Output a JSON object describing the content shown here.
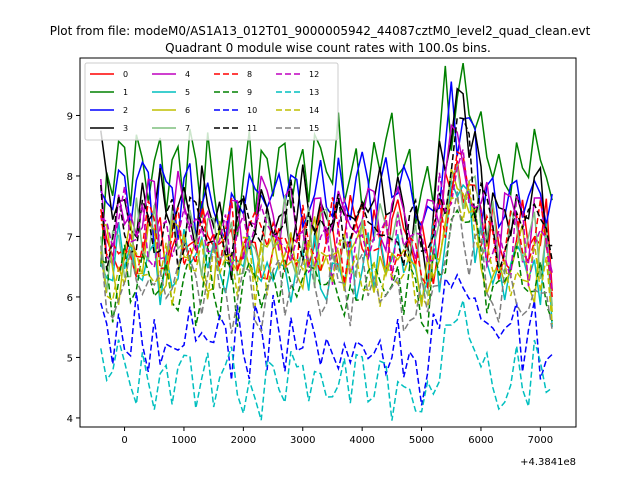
{
  "chart_data": {
    "type": "line",
    "suptitle": "Plot from file: modeM0/AS1A13_012T01_9000005942_44087cztM0_level2_quad_clean.evt",
    "title": "Quadrant 0 module wise count rates with 100.0s bins.",
    "xlabel": "",
    "ylabel": "",
    "x_offset_label": "+4.3841e8",
    "xlim": [
      -750,
      7600
    ],
    "ylim": [
      3.85,
      9.95
    ],
    "xticks": [
      0,
      1000,
      2000,
      3000,
      4000,
      5000,
      6000,
      7000
    ],
    "xtick_labels": [
      "0",
      "1000",
      "2000",
      "3000",
      "4000",
      "5000",
      "6000",
      "7000"
    ],
    "yticks": [
      4,
      5,
      6,
      7,
      8,
      9
    ],
    "ytick_labels": [
      "4",
      "5",
      "6",
      "7",
      "8",
      "9"
    ],
    "x_start": -400,
    "x_step": 100,
    "n_points": 77,
    "legend_position": "top-left",
    "series": [
      {
        "name": "0",
        "color": "#ff0000",
        "dash": "solid",
        "base": 7.0,
        "amp": 0.35,
        "freq": 1.7,
        "phase": 0.3,
        "bump": 1.2,
        "start": 7.45,
        "end": 6.1,
        "dip": 0.0
      },
      {
        "name": "1",
        "color": "#008000",
        "dash": "solid",
        "base": 8.2,
        "amp": 0.55,
        "freq": 2.3,
        "phase": 1.1,
        "bump": 1.3,
        "start": 6.5,
        "end": 7.6,
        "dip": 0.5
      },
      {
        "name": "2",
        "color": "#0000ff",
        "dash": "solid",
        "base": 7.7,
        "amp": 0.5,
        "freq": 1.9,
        "phase": 2.0,
        "bump": 1.4,
        "start": 7.75,
        "end": 7.7,
        "dip": 0.6
      },
      {
        "name": "3",
        "color": "#000000",
        "dash": "solid",
        "base": 7.4,
        "amp": 0.45,
        "freq": 2.1,
        "phase": 0.7,
        "bump": 1.5,
        "start": 8.75,
        "end": 6.85,
        "dip": 0.4
      },
      {
        "name": "4",
        "color": "#bf00bf",
        "dash": "solid",
        "base": 7.25,
        "amp": 0.4,
        "freq": 1.5,
        "phase": 2.7,
        "bump": 1.3,
        "start": 7.95,
        "end": 6.4,
        "dip": 0.2
      },
      {
        "name": "5",
        "color": "#00bfbf",
        "dash": "solid",
        "base": 6.55,
        "amp": 0.35,
        "freq": 2.5,
        "phase": 1.6,
        "bump": 1.1,
        "start": 6.55,
        "end": 5.5,
        "dip": 0.0
      },
      {
        "name": "6",
        "color": "#bfbf00",
        "dash": "solid",
        "base": 6.6,
        "amp": 0.35,
        "freq": 1.8,
        "phase": 0.2,
        "bump": 1.2,
        "start": 7.2,
        "end": 5.75,
        "dip": 0.0
      },
      {
        "name": "7",
        "color": "#7fbf7f",
        "dash": "solid",
        "base": 6.9,
        "amp": 0.45,
        "freq": 2.2,
        "phase": 2.4,
        "bump": 1.2,
        "start": 7.0,
        "end": 5.85,
        "dip": 0.0
      },
      {
        "name": "8",
        "color": "#ff0000",
        "dash": "6,3",
        "base": 6.9,
        "amp": 0.35,
        "freq": 1.6,
        "phase": 1.9,
        "bump": 1.2,
        "start": 7.35,
        "end": 6.0,
        "dip": 0.0
      },
      {
        "name": "9",
        "color": "#008000",
        "dash": "6,3",
        "base": 6.3,
        "amp": 0.35,
        "freq": 2.0,
        "phase": 0.9,
        "bump": 1.0,
        "start": 6.6,
        "end": 5.6,
        "dip": 0.0
      },
      {
        "name": "10",
        "color": "#0000ff",
        "dash": "6,3",
        "base": 5.3,
        "amp": 0.35,
        "freq": 2.4,
        "phase": 1.3,
        "bump": 1.0,
        "start": 5.9,
        "end": 5.05,
        "dip": 0.0
      },
      {
        "name": "11",
        "color": "#000000",
        "dash": "6,3",
        "base": 7.1,
        "amp": 0.4,
        "freq": 1.7,
        "phase": 2.9,
        "bump": 1.7,
        "start": 7.85,
        "end": 6.6,
        "dip": 0.3
      },
      {
        "name": "12",
        "color": "#bf00bf",
        "dash": "6,3",
        "base": 7.0,
        "amp": 0.4,
        "freq": 2.1,
        "phase": 0.5,
        "bump": 1.2,
        "start": 7.3,
        "end": 6.1,
        "dip": 0.0
      },
      {
        "name": "13",
        "color": "#00bfbf",
        "dash": "6,3",
        "base": 4.6,
        "amp": 0.3,
        "freq": 1.9,
        "phase": 2.2,
        "bump": 1.1,
        "start": 5.15,
        "end": 4.5,
        "dip": 0.0
      },
      {
        "name": "14",
        "color": "#bfbf00",
        "dash": "6,3",
        "base": 6.5,
        "amp": 0.35,
        "freq": 2.6,
        "phase": 1.0,
        "bump": 1.3,
        "start": 6.75,
        "end": 5.55,
        "dip": 0.0
      },
      {
        "name": "15",
        "color": "#7f7f7f",
        "dash": "6,3",
        "base": 6.15,
        "amp": 0.35,
        "freq": 1.4,
        "phase": 2.6,
        "bump": 1.1,
        "start": 6.85,
        "end": 5.45,
        "dip": 0.0
      }
    ]
  }
}
